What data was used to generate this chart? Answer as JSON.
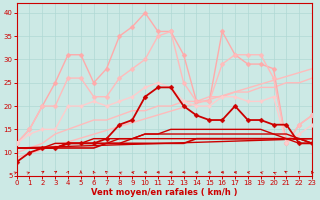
{
  "xlabel": "Vent moyen/en rafales ( km/h )",
  "xlim": [
    0,
    23
  ],
  "ylim": [
    5,
    42
  ],
  "yticks": [
    5,
    10,
    15,
    20,
    25,
    30,
    35,
    40
  ],
  "xticks": [
    0,
    1,
    2,
    3,
    4,
    5,
    6,
    7,
    8,
    9,
    10,
    11,
    12,
    13,
    14,
    15,
    16,
    17,
    18,
    19,
    20,
    21,
    22,
    23
  ],
  "bg_color": "#cce9e5",
  "grid_color": "#b0d8d4",
  "series": [
    {
      "x": [
        0,
        1,
        2,
        3,
        4,
        5,
        6,
        7,
        8,
        9,
        10,
        11,
        12,
        13,
        14,
        15,
        16,
        17,
        18,
        19,
        20,
        21,
        22,
        23
      ],
      "y": [
        12,
        15,
        20,
        25,
        31,
        31,
        25,
        28,
        35,
        37,
        40,
        36,
        36,
        31,
        21,
        21,
        36,
        31,
        29,
        29,
        28,
        12,
        16,
        18
      ],
      "color": "#ffaaaa",
      "lw": 1.0,
      "marker": "D",
      "ms": 2.5,
      "zorder": 3
    },
    {
      "x": [
        0,
        1,
        2,
        3,
        4,
        5,
        6,
        7,
        8,
        9,
        10,
        11,
        12,
        13,
        14,
        15,
        16,
        17,
        18,
        19,
        20,
        21,
        22,
        23
      ],
      "y": [
        12,
        15,
        20,
        20,
        26,
        26,
        22,
        22,
        26,
        28,
        30,
        35,
        36,
        25,
        21,
        21,
        29,
        31,
        31,
        31,
        26,
        12,
        16,
        18
      ],
      "color": "#ffbbbb",
      "lw": 1.0,
      "marker": "D",
      "ms": 2.5,
      "zorder": 3
    },
    {
      "x": [
        0,
        23
      ],
      "y": [
        9,
        28
      ],
      "color": "#ffbbbb",
      "lw": 1.0,
      "marker": null,
      "ms": 0,
      "zorder": 2
    },
    {
      "x": [
        0,
        1,
        2,
        3,
        4,
        5,
        6,
        7,
        8,
        9,
        10,
        11,
        12,
        13,
        14,
        15,
        16,
        17,
        18,
        19,
        20,
        21,
        22,
        23
      ],
      "y": [
        12,
        14,
        15,
        15,
        20,
        20,
        21,
        20,
        21,
        22,
        24,
        25,
        24,
        21,
        20,
        20,
        22,
        22,
        21,
        21,
        22,
        12,
        14,
        16
      ],
      "color": "#ffcccc",
      "lw": 1.0,
      "marker": "D",
      "ms": 2.0,
      "zorder": 3
    },
    {
      "x": [
        0,
        1,
        2,
        3,
        4,
        5,
        6,
        7,
        8,
        9,
        10,
        11,
        12,
        13,
        14,
        15,
        16,
        17,
        18,
        19,
        20,
        21,
        22,
        23
      ],
      "y": [
        10,
        11,
        12,
        14,
        15,
        16,
        17,
        17,
        18,
        19,
        19,
        20,
        20,
        21,
        21,
        22,
        22,
        23,
        23,
        24,
        24,
        25,
        25,
        26
      ],
      "color": "#ffbbbb",
      "lw": 1.0,
      "marker": null,
      "ms": 0,
      "zorder": 2
    },
    {
      "x": [
        0,
        1,
        2,
        3,
        4,
        5,
        6,
        7,
        8,
        9,
        10,
        11,
        12,
        13,
        14,
        15,
        16,
        17,
        18,
        19,
        20,
        21,
        22,
        23
      ],
      "y": [
        8,
        10,
        11,
        11,
        12,
        12,
        12,
        13,
        16,
        17,
        22,
        24,
        24,
        20,
        18,
        17,
        17,
        20,
        17,
        17,
        16,
        16,
        12,
        12
      ],
      "color": "#cc0000",
      "lw": 1.3,
      "marker": "D",
      "ms": 2.5,
      "zorder": 5
    },
    {
      "x": [
        0,
        1,
        2,
        3,
        4,
        5,
        6,
        7,
        8,
        9,
        10,
        11,
        12,
        13,
        14,
        15,
        16,
        17,
        18,
        19,
        20,
        21,
        22,
        23
      ],
      "y": [
        11,
        11,
        11,
        11,
        11,
        11,
        11,
        12,
        12,
        12,
        12,
        12,
        12,
        12,
        13,
        13,
        13,
        13,
        13,
        13,
        13,
        13,
        13,
        12
      ],
      "color": "#cc0000",
      "lw": 1.2,
      "marker": null,
      "ms": 0,
      "zorder": 4
    },
    {
      "x": [
        0,
        1,
        2,
        3,
        4,
        5,
        6,
        7,
        8,
        9,
        10,
        11,
        12,
        13,
        14,
        15,
        16,
        17,
        18,
        19,
        20,
        21,
        22,
        23
      ],
      "y": [
        11,
        11,
        11,
        11,
        12,
        12,
        12,
        12,
        12,
        13,
        13,
        13,
        13,
        13,
        13,
        13,
        13,
        13,
        13,
        13,
        13,
        13,
        12,
        12
      ],
      "color": "#cc0000",
      "lw": 1.0,
      "marker": null,
      "ms": 0,
      "zorder": 4
    },
    {
      "x": [
        0,
        1,
        2,
        3,
        4,
        5,
        6,
        7,
        8,
        9,
        10,
        11,
        12,
        13,
        14,
        15,
        16,
        17,
        18,
        19,
        20,
        21,
        22,
        23
      ],
      "y": [
        11,
        11,
        11,
        11,
        12,
        12,
        12,
        12,
        13,
        13,
        14,
        14,
        14,
        14,
        14,
        14,
        14,
        14,
        14,
        14,
        14,
        13,
        13,
        12
      ],
      "color": "#cc0000",
      "lw": 1.0,
      "marker": null,
      "ms": 0,
      "zorder": 4
    },
    {
      "x": [
        0,
        1,
        2,
        3,
        4,
        5,
        6,
        7,
        8,
        9,
        10,
        11,
        12,
        13,
        14,
        15,
        16,
        17,
        18,
        19,
        20,
        21,
        22,
        23
      ],
      "y": [
        11,
        11,
        11,
        12,
        12,
        12,
        13,
        13,
        13,
        13,
        14,
        14,
        15,
        15,
        15,
        15,
        15,
        15,
        15,
        15,
        14,
        14,
        13,
        13
      ],
      "color": "#cc0000",
      "lw": 1.0,
      "marker": null,
      "ms": 0,
      "zorder": 4
    },
    {
      "x": [
        0,
        23
      ],
      "y": [
        11,
        13
      ],
      "color": "#cc0000",
      "lw": 1.0,
      "marker": null,
      "ms": 0,
      "zorder": 2
    }
  ],
  "wind_arrows_x": [
    0,
    1,
    2,
    3,
    4,
    5,
    6,
    7,
    8,
    9,
    10,
    11,
    12,
    13,
    14,
    15,
    16,
    17,
    18,
    19,
    20,
    21,
    22,
    23
  ],
  "arrow_angles": [
    45,
    45,
    30,
    30,
    15,
    0,
    -10,
    -20,
    -45,
    -60,
    -70,
    -80,
    -90,
    -90,
    -90,
    -90,
    -80,
    -70,
    -60,
    -50,
    -40,
    -30,
    -20,
    -10
  ]
}
